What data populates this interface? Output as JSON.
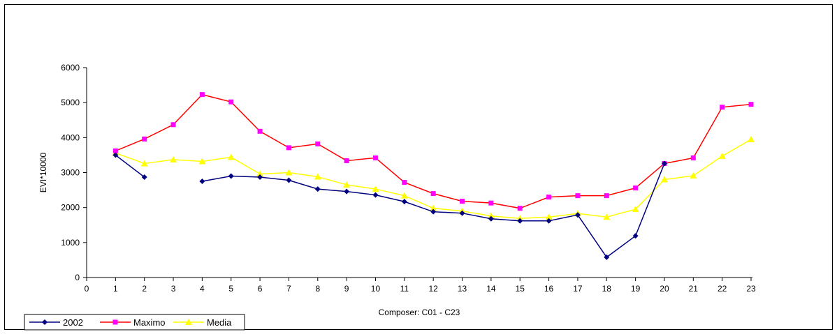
{
  "chart_data": {
    "type": "line",
    "title": "",
    "xlabel": "Composer: C01 - C23",
    "ylabel": "EVI*10000",
    "xlim": [
      0,
      23
    ],
    "ylim": [
      0,
      6000
    ],
    "x_ticks": [
      0,
      1,
      2,
      3,
      4,
      5,
      6,
      7,
      8,
      9,
      10,
      11,
      12,
      13,
      14,
      15,
      16,
      17,
      18,
      19,
      20,
      21,
      22,
      23
    ],
    "y_ticks": [
      0,
      1000,
      2000,
      3000,
      4000,
      5000,
      6000
    ],
    "grid": false,
    "legend_position": "bottom-left",
    "series": [
      {
        "name": "2002",
        "color": "#000080",
        "marker": "diamond",
        "x": [
          1,
          2,
          3,
          4,
          5,
          6,
          7,
          8,
          9,
          10,
          11,
          12,
          13,
          14,
          15,
          16,
          17,
          18,
          19,
          20,
          21,
          22,
          23
        ],
        "values": [
          3500,
          2870,
          null,
          2750,
          2900,
          2870,
          2780,
          2530,
          2460,
          2360,
          2170,
          1880,
          1840,
          1680,
          1620,
          1620,
          1790,
          580,
          1190,
          3260,
          null,
          null,
          null
        ]
      },
      {
        "name": "Maximo",
        "color": "#ff0000",
        "marker_color": "#ff00ff",
        "marker": "square",
        "x": [
          1,
          2,
          3,
          4,
          5,
          6,
          7,
          8,
          9,
          10,
          11,
          12,
          13,
          14,
          15,
          16,
          17,
          18,
          19,
          20,
          21,
          22,
          23
        ],
        "values": [
          3620,
          3960,
          4370,
          5230,
          5020,
          4180,
          3710,
          3820,
          3340,
          3420,
          2720,
          2400,
          2180,
          2130,
          1980,
          2300,
          2340,
          2340,
          2560,
          3260,
          3420,
          4870,
          4950
        ]
      },
      {
        "name": "Media",
        "color": "#ffff00",
        "marker": "triangle",
        "x": [
          1,
          2,
          3,
          4,
          5,
          6,
          7,
          8,
          9,
          10,
          11,
          12,
          13,
          14,
          15,
          16,
          17,
          18,
          19,
          20,
          21,
          22,
          23
        ],
        "values": [
          3560,
          3260,
          3370,
          3320,
          3440,
          2960,
          3000,
          2880,
          2650,
          2530,
          2340,
          1980,
          1900,
          1760,
          1690,
          1730,
          1830,
          1730,
          1950,
          2800,
          2910,
          3470,
          3950
        ]
      }
    ]
  }
}
